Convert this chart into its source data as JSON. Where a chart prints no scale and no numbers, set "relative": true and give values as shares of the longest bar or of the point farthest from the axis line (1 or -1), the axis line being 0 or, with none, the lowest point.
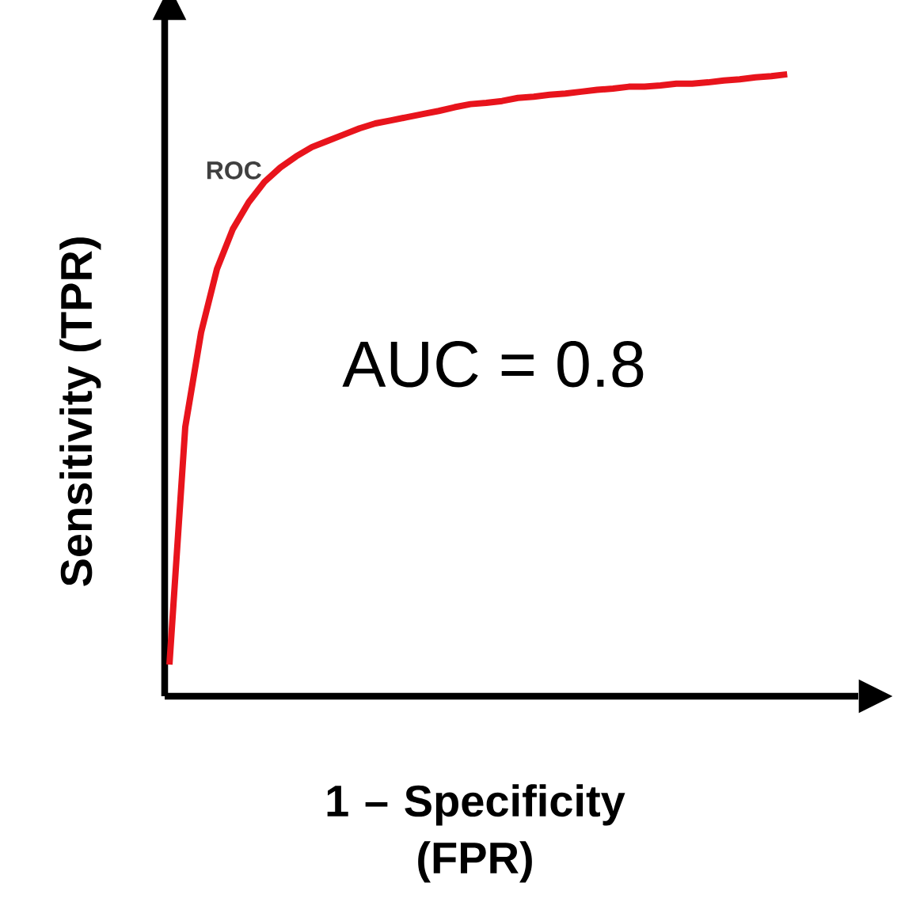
{
  "chart_data": {
    "type": "line",
    "relative": true,
    "xlabel": "1 – Specificity (FPR)",
    "ylabel": "Sensitivity (TPR)",
    "annotations": [
      "AUC = 0.8"
    ],
    "categories": [
      null,
      null,
      null,
      null,
      null,
      null,
      null,
      null,
      null,
      null,
      null,
      null,
      null,
      null,
      null,
      null,
      null,
      null,
      null,
      null,
      null,
      null,
      null,
      null,
      null,
      null,
      null,
      null,
      null,
      null,
      null,
      null,
      null,
      null,
      null,
      null,
      null,
      null,
      null,
      null
    ],
    "series": [
      {
        "name": "ROC",
        "color": "#e8141c",
        "values": [
          0.051,
          0.433,
          0.585,
          0.687,
          0.751,
          0.794,
          0.827,
          0.85,
          0.868,
          0.883,
          0.893,
          0.903,
          0.913,
          0.921,
          0.926,
          0.931,
          0.936,
          0.941,
          0.947,
          0.952,
          0.954,
          0.957,
          0.962,
          0.964,
          0.967,
          0.969,
          0.972,
          0.975,
          0.977,
          0.98,
          0.98,
          0.982,
          0.985,
          0.985,
          0.987,
          0.99,
          0.992,
          0.995,
          0.997,
          1.0
        ]
      }
    ]
  }
}
